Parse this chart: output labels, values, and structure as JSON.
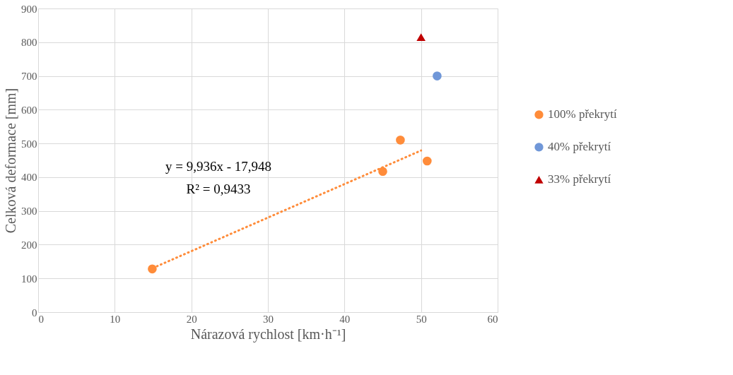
{
  "chart_data": {
    "type": "scatter",
    "xlabel": "Nárazová rychlost [km·h⁻¹]",
    "ylabel": "Celková deformace [mm]",
    "xlim": [
      0,
      60
    ],
    "xticks": [
      0,
      10,
      20,
      30,
      40,
      50,
      60
    ],
    "ylim": [
      0,
      900
    ],
    "yticks": [
      0,
      100,
      200,
      300,
      400,
      500,
      600,
      700,
      800,
      900
    ],
    "grid": true,
    "legend": "right",
    "series": [
      {
        "name": "100% překrytí",
        "color": "#ff8c3a",
        "marker": "circle",
        "x": [
          14.9,
          45.0,
          47.3,
          50.8
        ],
        "values": [
          128,
          417,
          510,
          448
        ]
      },
      {
        "name": "40% překrytí",
        "color": "#7097d8",
        "marker": "circle",
        "x": [
          52.1
        ],
        "values": [
          700
        ]
      },
      {
        "name": "33% překrytí",
        "color": "#c00000",
        "marker": "triangle",
        "x": [
          50.0
        ],
        "values": [
          815
        ]
      },
      {
        "type": "line",
        "color": "#ff8c3a",
        "line_style": "dotted",
        "x": [
          15,
          50
        ],
        "values": [
          131,
          479
        ]
      }
    ],
    "annotations": [
      "y = 9,936x - 17,948",
      "R² = 0,9433"
    ]
  }
}
